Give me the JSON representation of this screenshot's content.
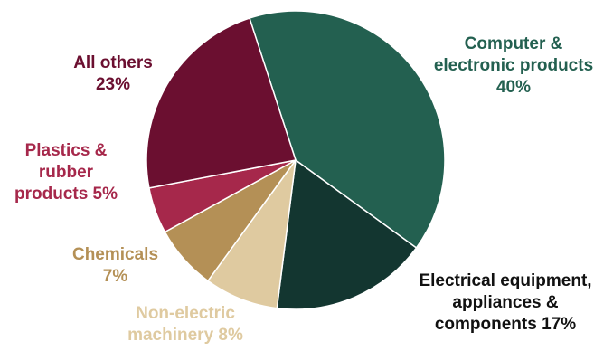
{
  "chart_data": {
    "type": "pie",
    "title": "",
    "start_angle_deg": -18,
    "direction": "clockwise",
    "slices": [
      {
        "id": "computer",
        "value": 40,
        "color": "#236050",
        "label_color": "#236050",
        "label_lines": [
          "Computer &",
          "electronic products",
          "40%"
        ]
      },
      {
        "id": "electrical",
        "value": 17,
        "color": "#133630",
        "label_color": "#111111",
        "label_lines": [
          "Electrical equipment,",
          "appliances &",
          "components 17%"
        ]
      },
      {
        "id": "nonelectric",
        "value": 8,
        "color": "#DFCAA0",
        "label_color": "#DFCAA0",
        "label_lines": [
          "Non-electric",
          "machinery 8%"
        ]
      },
      {
        "id": "chemicals",
        "value": 7,
        "color": "#B49056",
        "label_color": "#B49056",
        "label_lines": [
          "Chemicals",
          "7%"
        ]
      },
      {
        "id": "plastics",
        "value": 5,
        "color": "#A6284B",
        "label_color": "#A6284B",
        "label_lines": [
          "Plastics &",
          "rubber",
          "products 5%"
        ]
      },
      {
        "id": "others",
        "value": 23,
        "color": "#6B0F30",
        "label_color": "#6B0F30",
        "label_lines": [
          "All others",
          "23%"
        ]
      }
    ]
  }
}
